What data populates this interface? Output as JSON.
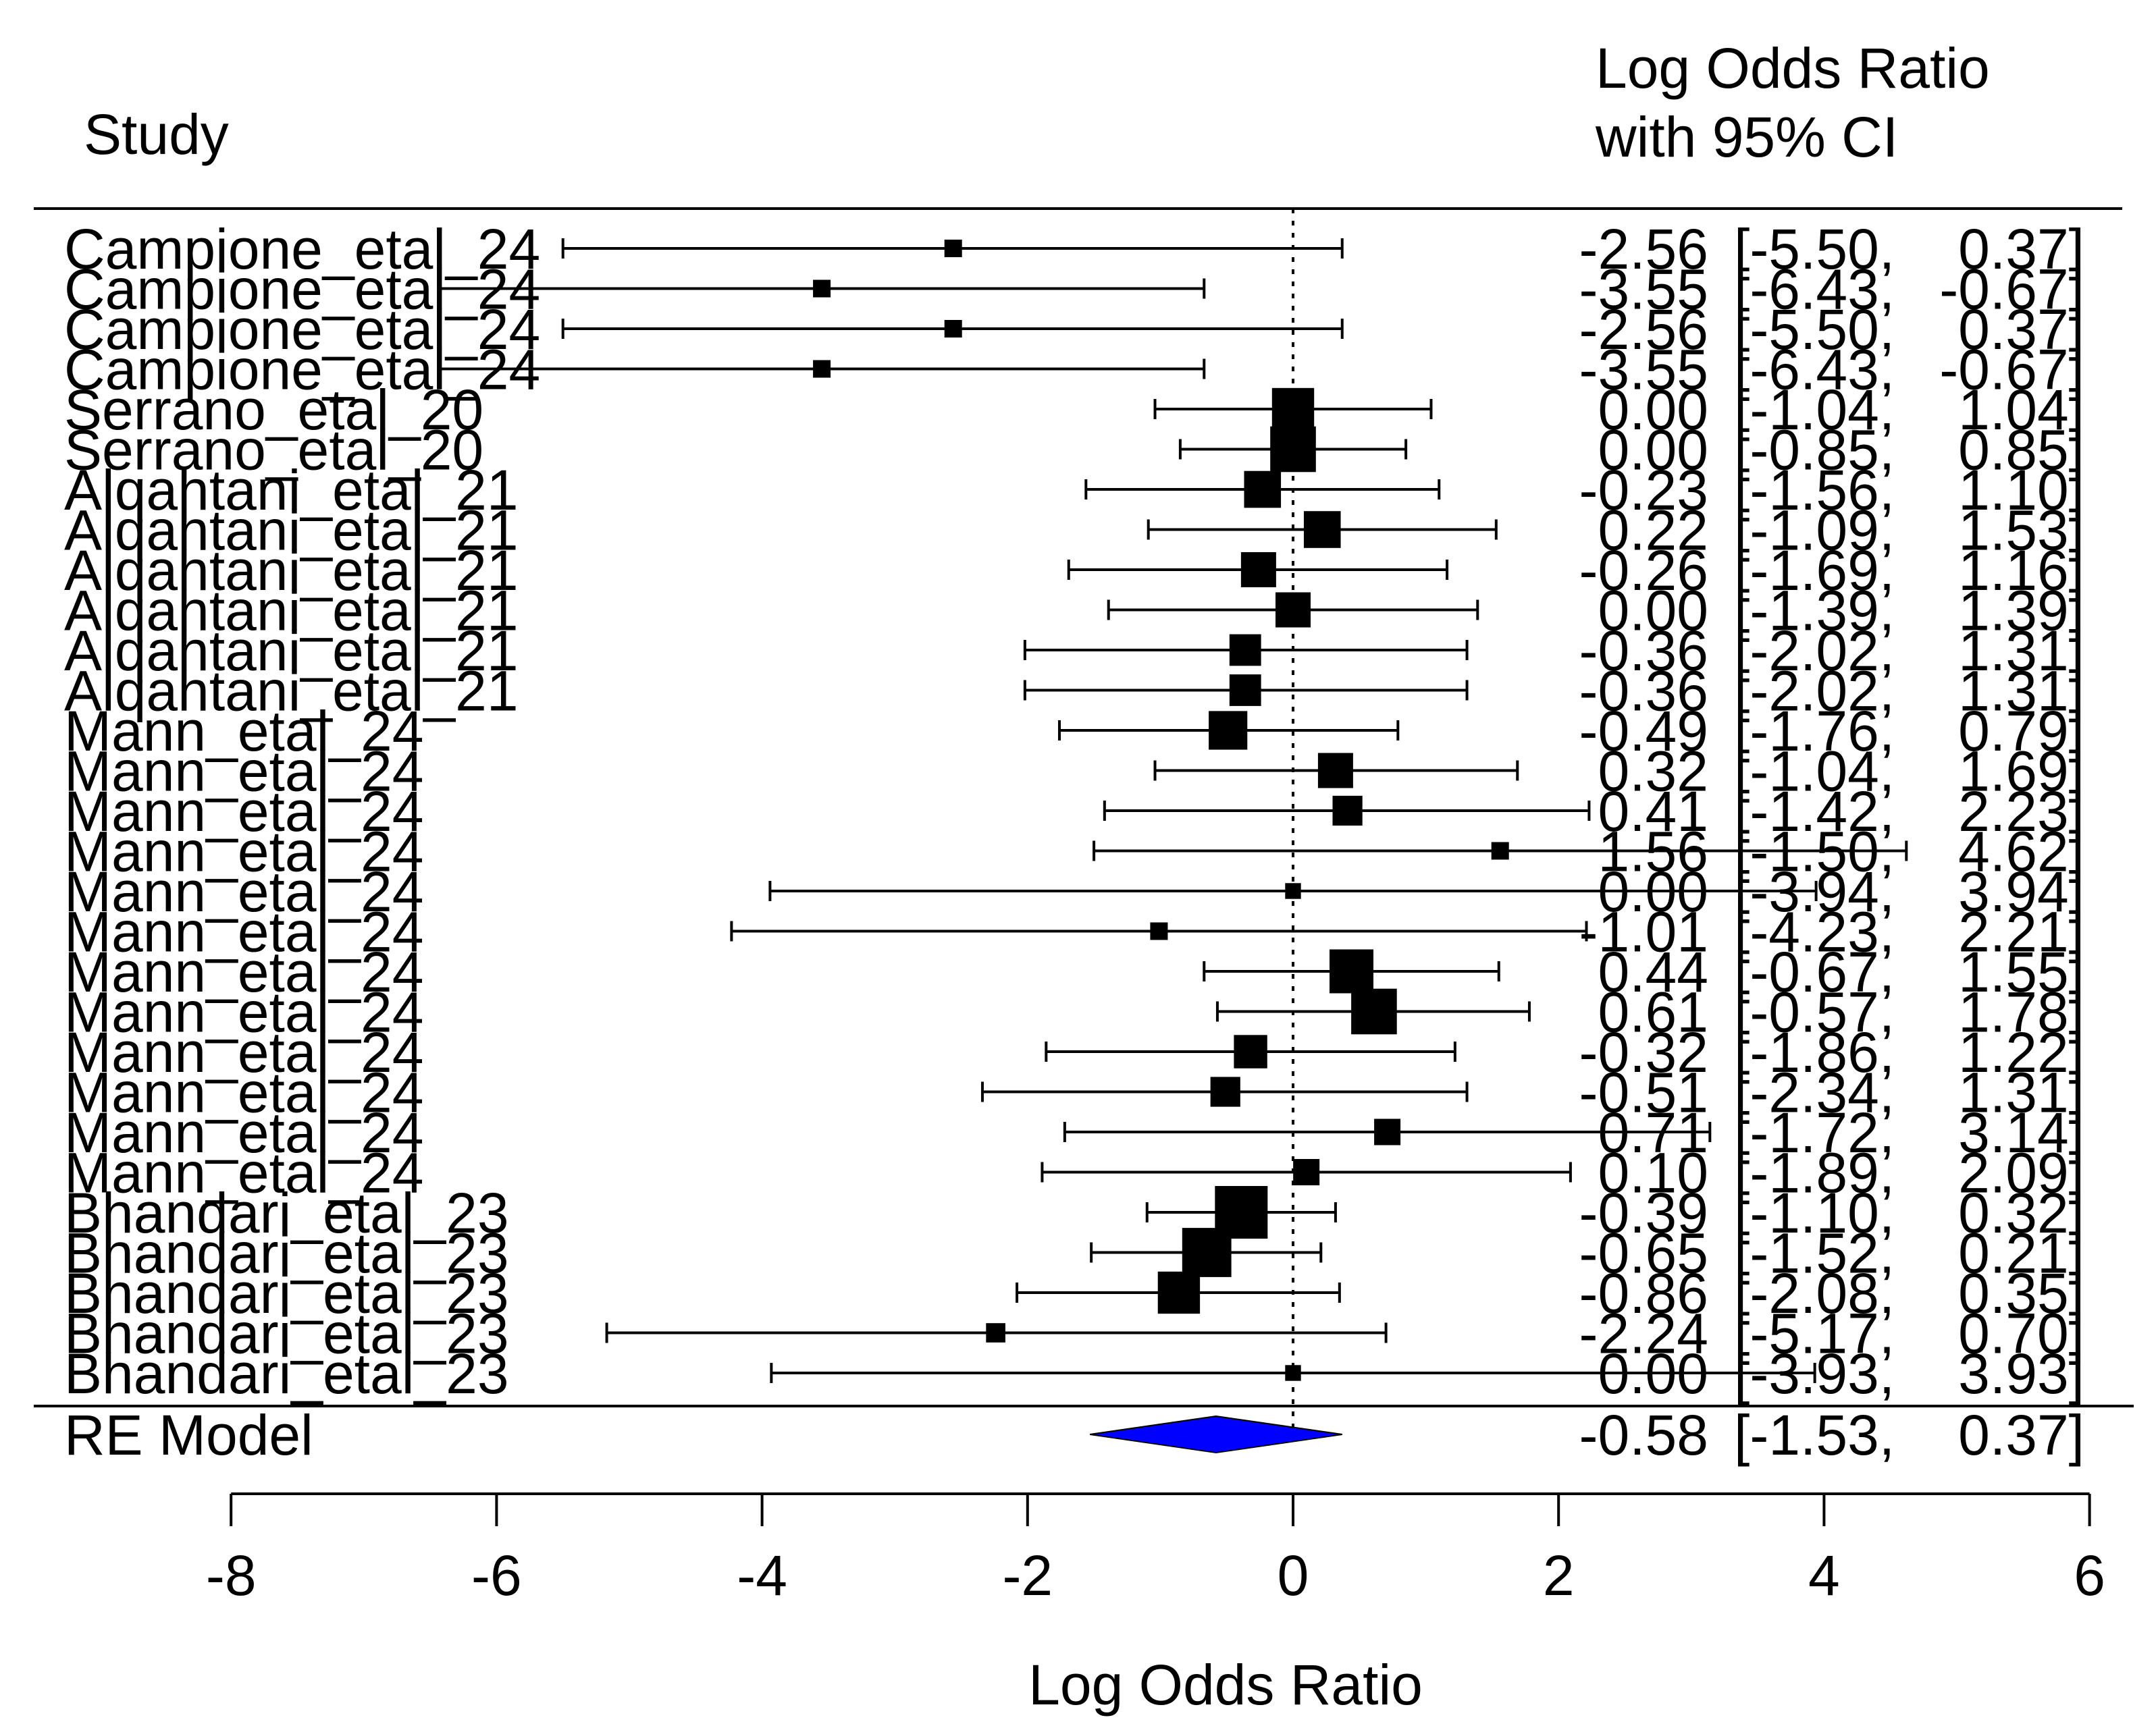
{
  "chart_data": {
    "type": "forest",
    "header": {
      "study": "Study",
      "effect_line1": "Log Odds Ratio",
      "effect_line2": "with 95% CI"
    },
    "xlabel": "Log Odds Ratio",
    "xlim": [
      -8,
      6
    ],
    "xticks": [
      -8,
      -6,
      -4,
      -2,
      0,
      2,
      4,
      6
    ],
    "xtick_labels": [
      "-8",
      "-6",
      "-4",
      "-2",
      "0",
      "2",
      "4",
      "6"
    ],
    "reference_line": 0,
    "studies": [
      {
        "label": "Campione_etal_24",
        "est": -2.56,
        "lo": -5.5,
        "hi": 0.37,
        "est_text": "-2.56",
        "lo_text": "[-5.50,",
        "hi_text": "0.37]",
        "size": 1
      },
      {
        "label": "Campione_etal_24",
        "est": -3.55,
        "lo": -6.43,
        "hi": -0.67,
        "est_text": "-3.55",
        "lo_text": "[-6.43,",
        "hi_text": "-0.67]",
        "size": 1
      },
      {
        "label": "Campione_etal_24",
        "est": -2.56,
        "lo": -5.5,
        "hi": 0.37,
        "est_text": "-2.56",
        "lo_text": "[-5.50,",
        "hi_text": "0.37]",
        "size": 1
      },
      {
        "label": "Campione_etal_24",
        "est": -3.55,
        "lo": -6.43,
        "hi": -0.67,
        "est_text": "-3.55",
        "lo_text": "[-6.43,",
        "hi_text": "-0.67]",
        "size": 1
      },
      {
        "label": "Serrano_etal_20",
        "est": 0.0,
        "lo": -1.04,
        "hi": 1.04,
        "est_text": "0.00",
        "lo_text": "[-1.04,",
        "hi_text": "1.04]",
        "size": 2.4
      },
      {
        "label": "Serrano_etal_20",
        "est": 0.0,
        "lo": -0.85,
        "hi": 0.85,
        "est_text": "0.00",
        "lo_text": "[-0.85,",
        "hi_text": "0.85]",
        "size": 2.6
      },
      {
        "label": "Alqahtani_etal_21",
        "est": -0.23,
        "lo": -1.56,
        "hi": 1.1,
        "est_text": "-0.23",
        "lo_text": "[-1.56,",
        "hi_text": "1.10]",
        "size": 2.1
      },
      {
        "label": "Alqahtani_etal_21",
        "est": 0.22,
        "lo": -1.09,
        "hi": 1.53,
        "est_text": "0.22",
        "lo_text": "[-1.09,",
        "hi_text": "1.53]",
        "size": 2.1
      },
      {
        "label": "Alqahtani_etal_21",
        "est": -0.26,
        "lo": -1.69,
        "hi": 1.16,
        "est_text": "-0.26",
        "lo_text": "[-1.69,",
        "hi_text": "1.16]",
        "size": 2.0
      },
      {
        "label": "Alqahtani_etal_21",
        "est": 0.0,
        "lo": -1.39,
        "hi": 1.39,
        "est_text": "0.00",
        "lo_text": "[-1.39,",
        "hi_text": "1.39]",
        "size": 2.0
      },
      {
        "label": "Alqahtani_etal_21",
        "est": -0.36,
        "lo": -2.02,
        "hi": 1.31,
        "est_text": "-0.36",
        "lo_text": "[-2.02,",
        "hi_text": "1.31]",
        "size": 1.8
      },
      {
        "label": "Alqahtani_etal_21",
        "est": -0.36,
        "lo": -2.02,
        "hi": 1.31,
        "est_text": "-0.36",
        "lo_text": "[-2.02,",
        "hi_text": "1.31]",
        "size": 1.8
      },
      {
        "label": "Mann_etal_24",
        "est": -0.49,
        "lo": -1.76,
        "hi": 0.79,
        "est_text": "-0.49",
        "lo_text": "[-1.76,",
        "hi_text": "0.79]",
        "size": 2.2
      },
      {
        "label": "Mann_etal_24",
        "est": 0.32,
        "lo": -1.04,
        "hi": 1.69,
        "est_text": "0.32",
        "lo_text": "[-1.04,",
        "hi_text": "1.69]",
        "size": 2.0
      },
      {
        "label": "Mann_etal_24",
        "est": 0.41,
        "lo": -1.42,
        "hi": 2.23,
        "est_text": "0.41",
        "lo_text": "[-1.42,",
        "hi_text": "2.23]",
        "size": 1.7
      },
      {
        "label": "Mann_etal_24",
        "est": 1.56,
        "lo": -1.5,
        "hi": 4.62,
        "est_text": "1.56",
        "lo_text": "[-1.50,",
        "hi_text": "4.62]",
        "size": 1
      },
      {
        "label": "Mann_etal_24",
        "est": 0.0,
        "lo": -3.94,
        "hi": 3.94,
        "est_text": "0.00",
        "lo_text": "[-3.94,",
        "hi_text": "3.94]",
        "size": 0.9
      },
      {
        "label": "Mann_etal_24",
        "est": -1.01,
        "lo": -4.23,
        "hi": 2.21,
        "est_text": "-1.01",
        "lo_text": "[-4.23,",
        "hi_text": "2.21]",
        "size": 1
      },
      {
        "label": "Mann_etal_24",
        "est": 0.44,
        "lo": -0.67,
        "hi": 1.55,
        "est_text": "0.44",
        "lo_text": "[-0.67,",
        "hi_text": "1.55]",
        "size": 2.5
      },
      {
        "label": "Mann_etal_24",
        "est": 0.61,
        "lo": -0.57,
        "hi": 1.78,
        "est_text": "0.61",
        "lo_text": "[-0.57,",
        "hi_text": "1.78]",
        "size": 2.6
      },
      {
        "label": "Mann_etal_24",
        "est": -0.32,
        "lo": -1.86,
        "hi": 1.22,
        "est_text": "-0.32",
        "lo_text": "[-1.86,",
        "hi_text": "1.22]",
        "size": 1.9
      },
      {
        "label": "Mann_etal_24",
        "est": -0.51,
        "lo": -2.34,
        "hi": 1.31,
        "est_text": "-0.51",
        "lo_text": "[-2.34,",
        "hi_text": "1.31]",
        "size": 1.7
      },
      {
        "label": "Mann_etal_24",
        "est": 0.71,
        "lo": -1.72,
        "hi": 3.14,
        "est_text": "0.71",
        "lo_text": "[-1.72,",
        "hi_text": "3.14]",
        "size": 1.5
      },
      {
        "label": "Mann_etal_24",
        "est": 0.1,
        "lo": -1.89,
        "hi": 2.09,
        "est_text": "0.10",
        "lo_text": "[-1.89,",
        "hi_text": "2.09]",
        "size": 1.5
      },
      {
        "label": "Bhandari_etal_23",
        "est": -0.39,
        "lo": -1.1,
        "hi": 0.32,
        "est_text": "-0.39",
        "lo_text": "[-1.10,",
        "hi_text": "0.32]",
        "size": 3.0
      },
      {
        "label": "Bhandari_etal_23",
        "est": -0.65,
        "lo": -1.52,
        "hi": 0.21,
        "est_text": "-0.65",
        "lo_text": "[-1.52,",
        "hi_text": "0.21]",
        "size": 2.8
      },
      {
        "label": "Bhandari_etal_23",
        "est": -0.86,
        "lo": -2.08,
        "hi": 0.35,
        "est_text": "-0.86",
        "lo_text": "[-2.08,",
        "hi_text": "0.35]",
        "size": 2.4
      },
      {
        "label": "Bhandari_etal_23",
        "est": -2.24,
        "lo": -5.17,
        "hi": 0.7,
        "est_text": "-2.24",
        "lo_text": "[-5.17,",
        "hi_text": "0.70]",
        "size": 1.1
      },
      {
        "label": "Bhandari_etal_23",
        "est": 0.0,
        "lo": -3.93,
        "hi": 3.93,
        "est_text": "0.00",
        "lo_text": "[-3.93,",
        "hi_text": "3.93]",
        "size": 0.9
      }
    ],
    "summary": {
      "label": "RE Model",
      "est": -0.58,
      "lo": -1.53,
      "hi": 0.37,
      "est_text": "-0.58",
      "lo_text": "[-1.53,",
      "hi_text": "0.37]",
      "color": "#0000ff"
    }
  }
}
